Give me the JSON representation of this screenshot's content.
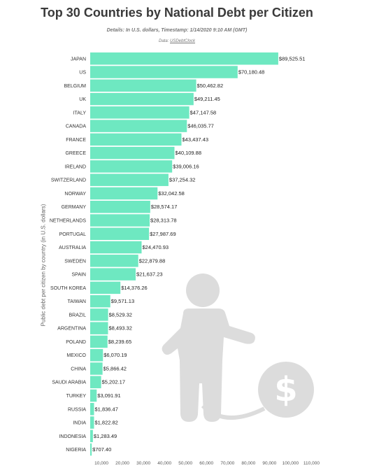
{
  "chart_data": {
    "type": "bar",
    "orientation": "horizontal",
    "title": "Top 30 Countries by National Debt per Citizen",
    "subtitle": "Details: In U.S. dollars, Timestamp: 1/14/2020 9:10 AM (GMT)",
    "source_prefix": "Data:",
    "source_link": "USDebtClock",
    "xlabel": "",
    "ylabel": "Public debt per citizen by country (in U.S. dollars)",
    "xlim": [
      0,
      110000
    ],
    "xticks": [
      10000,
      20000,
      30000,
      40000,
      50000,
      60000,
      70000,
      80000,
      90000,
      100000,
      110000
    ],
    "xtick_labels": [
      "10,000",
      "20,000",
      "30,000",
      "40,000",
      "50,000",
      "60,000",
      "70,000",
      "80,000",
      "90,000",
      "100,000",
      "110,000"
    ],
    "categories": [
      "JAPAN",
      "US",
      "BELGIUM",
      "UK",
      "ITALY",
      "CANADA",
      "FRANCE",
      "GREECE",
      "IRELAND",
      "SWITZERLAND",
      "NORWAY",
      "GERMANY",
      "NETHERLANDS",
      "PORTUGAL",
      "AUSTRALIA",
      "SWEDEN",
      "SPAIN",
      "SOUTH KOREA",
      "TAIWAN",
      "BRAZIL",
      "ARGENTINA",
      "POLAND",
      "MEXICO",
      "CHINA",
      "SAUDI ARABIA",
      "TURKEY",
      "RUSSIA",
      "INDIA",
      "INDONESIA",
      "NIGERIA"
    ],
    "values": [
      89525.51,
      70180.48,
      50462.82,
      49211.45,
      47147.58,
      46035.77,
      43437.43,
      40109.88,
      39006.16,
      37254.32,
      32042.58,
      28574.17,
      28313.78,
      27987.69,
      24470.93,
      22879.88,
      21637.23,
      14376.26,
      9571.13,
      8529.32,
      8493.32,
      8239.65,
      6070.19,
      5866.42,
      5202.17,
      3091.91,
      1836.47,
      1822.82,
      1283.49,
      707.4
    ],
    "value_labels": [
      "$89,525.51",
      "$70,180.48",
      "$50,462.82",
      "$49,211.45",
      "$47,147.58",
      "$46,035.77",
      "$43,437.43",
      "$40,109.88",
      "$39,006.16",
      "$37,254.32",
      "$32,042.58",
      "$28,574.17",
      "$28,313.78",
      "$27,987.69",
      "$24,470.93",
      "$22,879.88",
      "$21,637.23",
      "$14,376.26",
      "$9,571.13",
      "$8,529.32",
      "$8,493.32",
      "$8,239.65",
      "$6,070.19",
      "$5,866.42",
      "$5,202.17",
      "$3,091.91",
      "$1,836.47",
      "$1,822.82",
      "$1,283.49",
      "$707.40"
    ],
    "grid": false,
    "legend": "none",
    "colors": {
      "bar": "#6ee8c1",
      "decoration": "#dcdcdc",
      "title": "#3a3a3a"
    },
    "decoration_icon": "person-ball-and-chain-dollar-icon"
  }
}
